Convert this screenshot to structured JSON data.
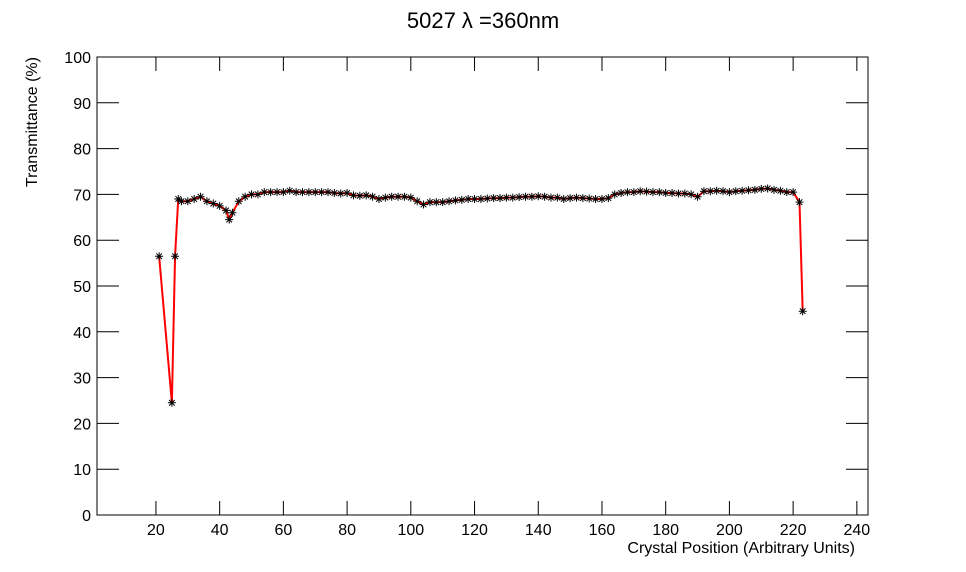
{
  "chart_data": {
    "type": "line",
    "title": "5027 λ =360nm",
    "xlabel": "Crystal Position (Arbitrary Units)",
    "ylabel": "Transmittance (%)",
    "color": "#ff0000",
    "marker_color": "#000000",
    "x": [
      21,
      25,
      26,
      27,
      28,
      30,
      32,
      34,
      36,
      38,
      40,
      42,
      43,
      44,
      46,
      48,
      50,
      52,
      54,
      56,
      58,
      60,
      62,
      64,
      66,
      68,
      70,
      72,
      74,
      76,
      78,
      80,
      82,
      84,
      86,
      88,
      90,
      92,
      94,
      96,
      98,
      100,
      102,
      104,
      106,
      108,
      110,
      112,
      114,
      116,
      118,
      120,
      122,
      124,
      126,
      128,
      130,
      132,
      134,
      136,
      138,
      140,
      142,
      144,
      146,
      148,
      150,
      152,
      154,
      156,
      158,
      160,
      162,
      164,
      166,
      168,
      170,
      172,
      174,
      176,
      178,
      180,
      182,
      184,
      186,
      188,
      190,
      192,
      194,
      196,
      198,
      200,
      202,
      204,
      206,
      208,
      210,
      212,
      214,
      216,
      218,
      220,
      222,
      223
    ],
    "values": [
      56.5,
      24.5,
      56.5,
      69,
      68.5,
      68.5,
      69,
      69.5,
      68.5,
      68,
      67.5,
      66.5,
      64.5,
      66,
      68.5,
      69.5,
      70,
      70,
      70.5,
      70.5,
      70.5,
      70.5,
      70.8,
      70.5,
      70.5,
      70.5,
      70.5,
      70.5,
      70.5,
      70.3,
      70.2,
      70.3,
      69.8,
      69.7,
      69.8,
      69.5,
      69,
      69.3,
      69.5,
      69.5,
      69.5,
      69.3,
      68.5,
      67.8,
      68.3,
      68.3,
      68.3,
      68.5,
      68.7,
      68.8,
      69,
      69,
      69,
      69.1,
      69.2,
      69.2,
      69.3,
      69.3,
      69.4,
      69.5,
      69.5,
      69.6,
      69.5,
      69.3,
      69.3,
      69,
      69.2,
      69.3,
      69.2,
      69.1,
      69,
      69,
      69.2,
      70,
      70.3,
      70.5,
      70.5,
      70.7,
      70.6,
      70.5,
      70.5,
      70.3,
      70.3,
      70.2,
      70.2,
      70,
      69.5,
      70.7,
      70.7,
      70.8,
      70.7,
      70.5,
      70.7,
      70.8,
      70.9,
      71,
      71.2,
      71.3,
      71,
      70.8,
      70.5,
      70.5,
      68.3,
      44.5
    ],
    "xlim": [
      1.5,
      243.5
    ],
    "ylim": [
      0,
      100
    ],
    "xticks": [
      20,
      40,
      60,
      80,
      100,
      120,
      140,
      160,
      180,
      200,
      220,
      240
    ],
    "yticks": [
      0,
      10,
      20,
      30,
      40,
      50,
      60,
      70,
      80,
      90,
      100
    ]
  }
}
